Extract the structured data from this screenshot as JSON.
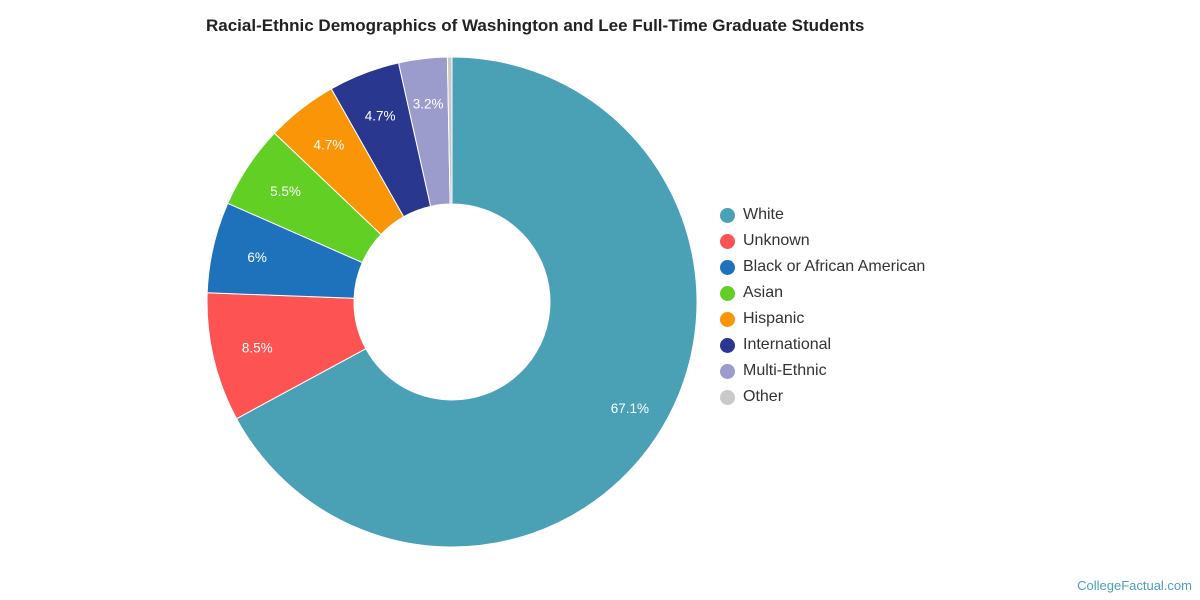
{
  "chart_data": {
    "type": "pie",
    "title": "Racial-Ethnic Demographics of Washington and Lee Full-Time Graduate Students",
    "legend_position": "right",
    "slices": [
      {
        "name": "White",
        "value": 67.1,
        "label": "67.1%",
        "color": "#4aa0b5"
      },
      {
        "name": "Unknown",
        "value": 8.5,
        "label": "8.5%",
        "color": "#fd5353"
      },
      {
        "name": "Black or African American",
        "value": 6.0,
        "label": "6%",
        "color": "#1e72bb"
      },
      {
        "name": "Asian",
        "value": 5.5,
        "label": "5.5%",
        "color": "#62cf24"
      },
      {
        "name": "Hispanic",
        "value": 4.7,
        "label": "4.7%",
        "color": "#f99506"
      },
      {
        "name": "International",
        "value": 4.7,
        "label": "4.7%",
        "color": "#2a378f"
      },
      {
        "name": "Multi-Ethnic",
        "value": 3.2,
        "label": "3.2%",
        "color": "#9b9bcc"
      },
      {
        "name": "Other",
        "value": 0.3,
        "label": "",
        "color": "#c9c9c9"
      }
    ]
  },
  "credit": "CollegeFactual.com"
}
